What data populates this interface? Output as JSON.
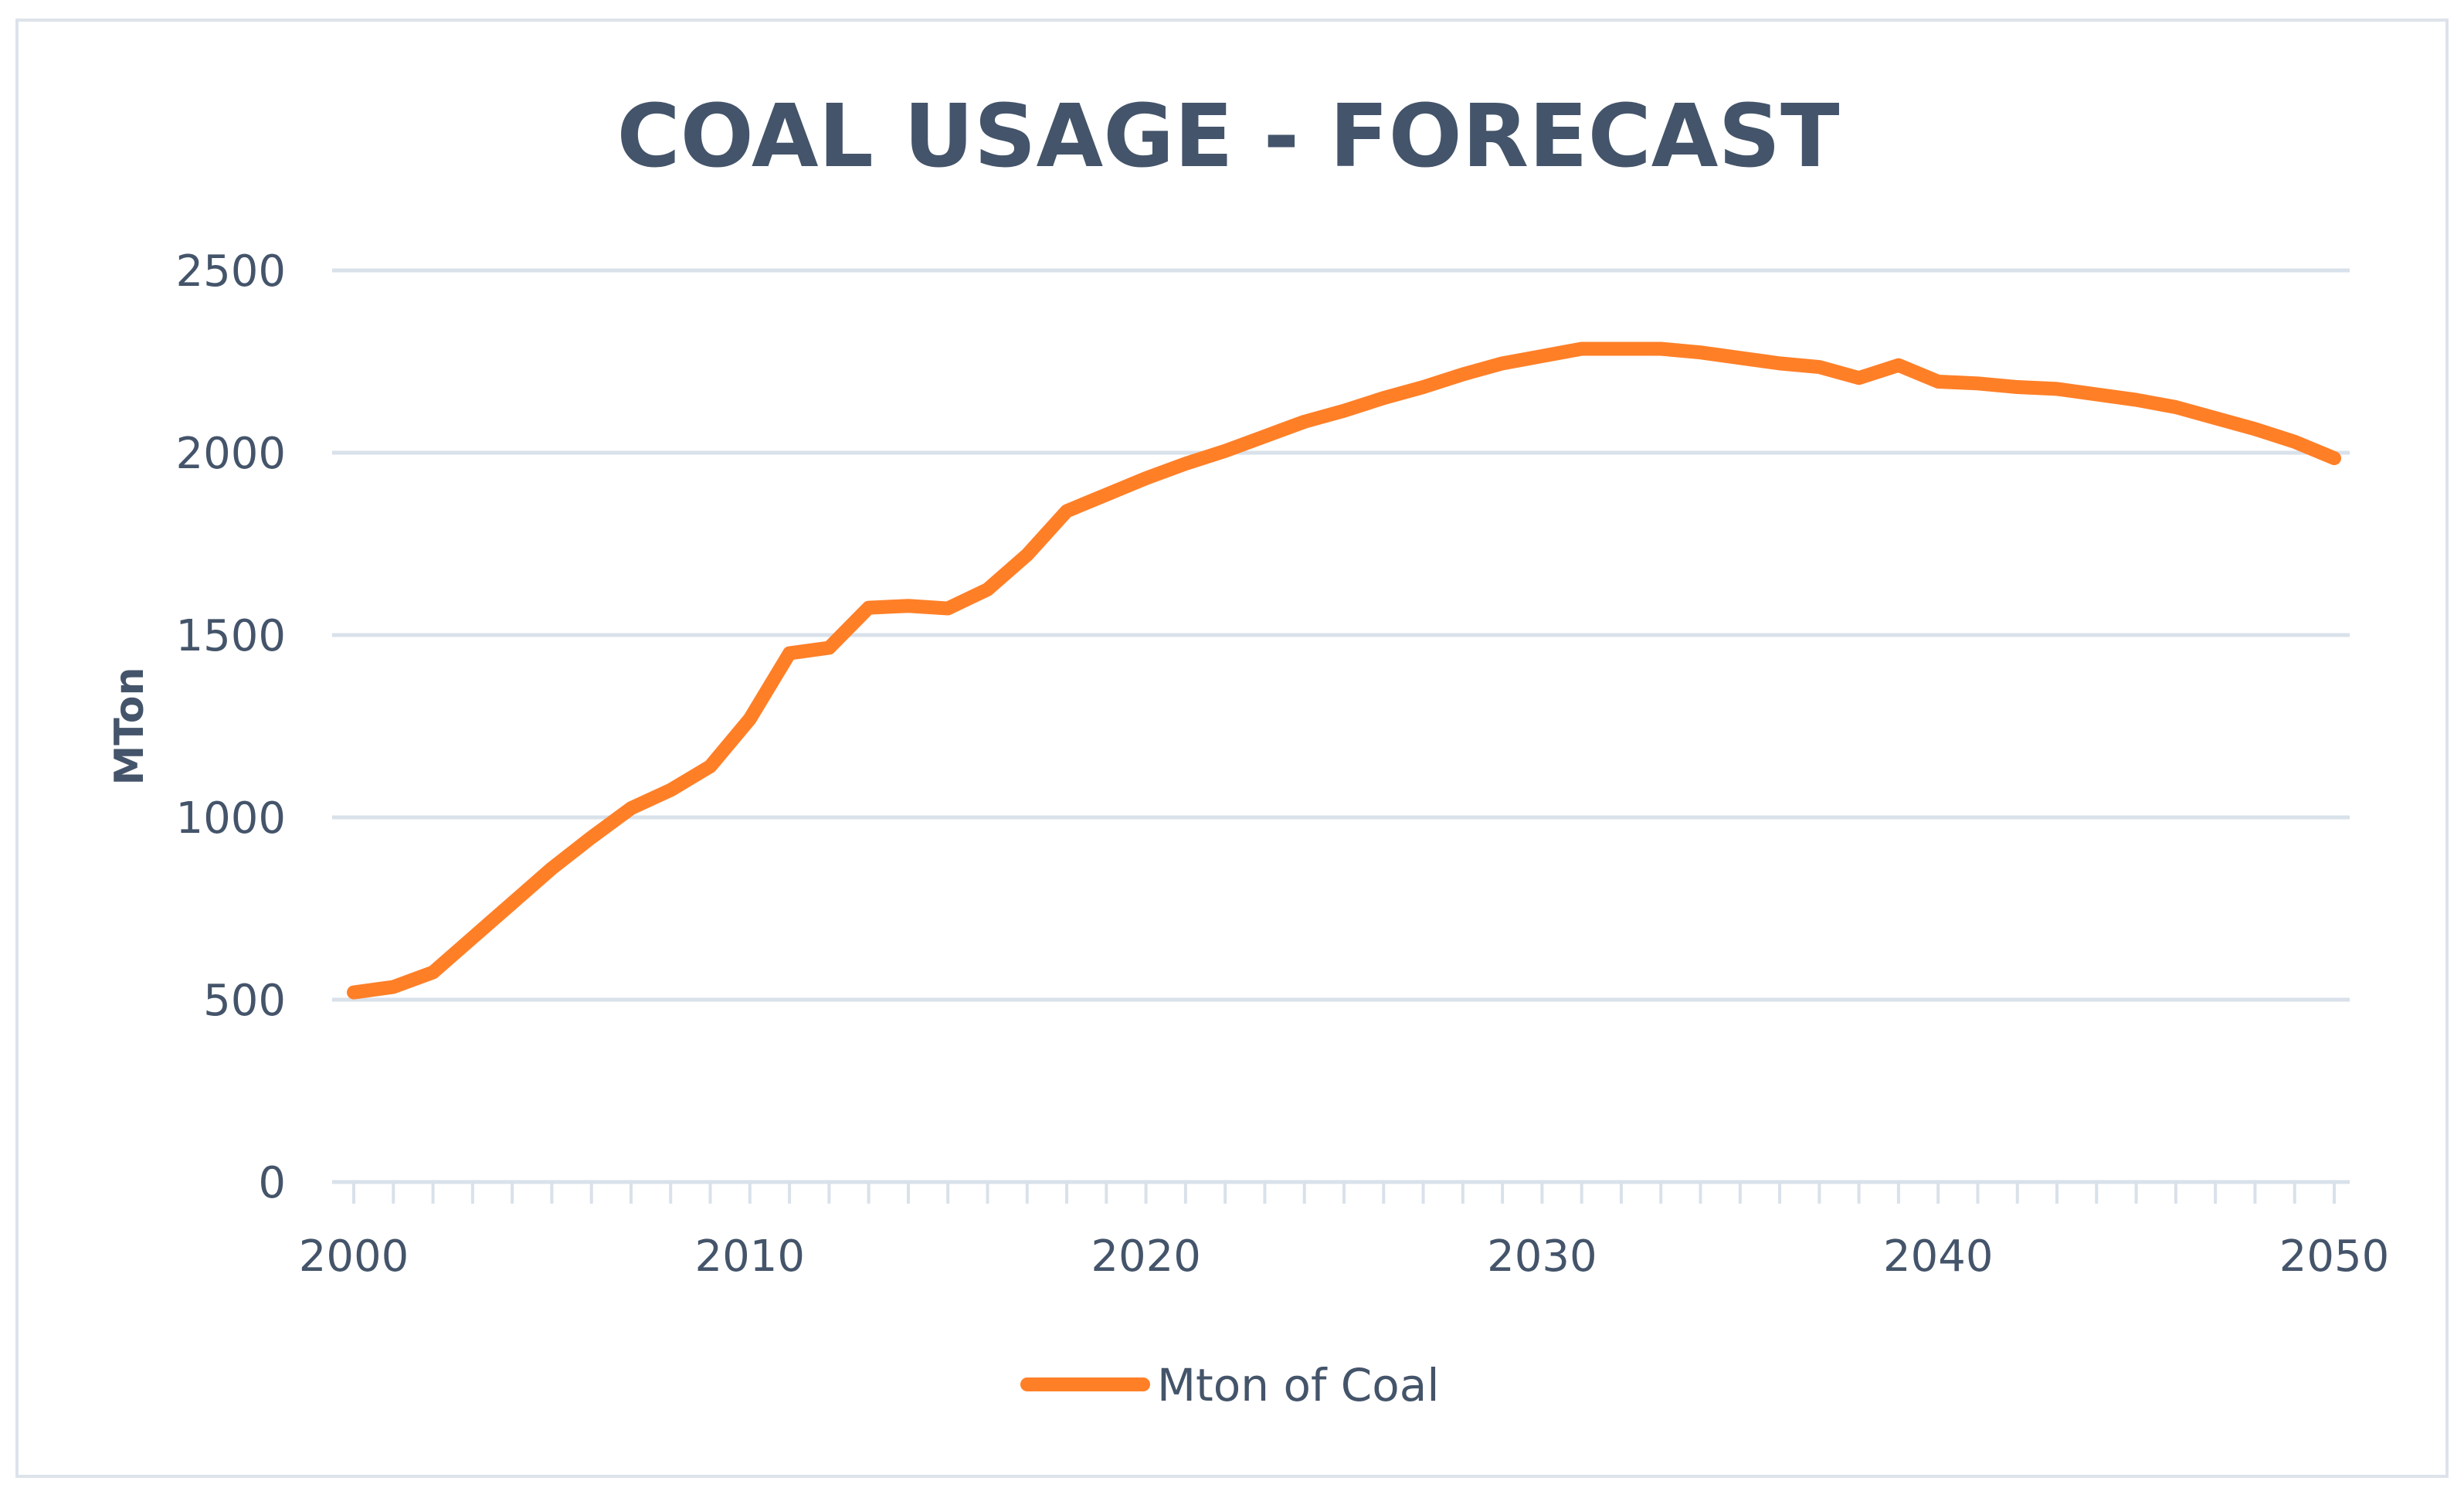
{
  "chart_data": {
    "type": "line",
    "title": "COAL USAGE - FORECAST",
    "xlabel": "",
    "ylabel": "MTon",
    "xlim": [
      2000,
      2050
    ],
    "ylim": [
      0,
      2500
    ],
    "x_ticks": [
      "2000",
      "2010",
      "2020",
      "2030",
      "2040",
      "2050"
    ],
    "y_ticks": [
      "0",
      "500",
      "1000",
      "1500",
      "2000",
      "2500"
    ],
    "grid": true,
    "legend": "bottom",
    "colors": {
      "series": "#ff7f27",
      "text": "#44546a",
      "grid": "#d9e1ea"
    },
    "x": [
      2000,
      2001,
      2002,
      2003,
      2004,
      2005,
      2006,
      2007,
      2008,
      2009,
      2010,
      2011,
      2012,
      2013,
      2014,
      2015,
      2016,
      2017,
      2018,
      2019,
      2020,
      2021,
      2022,
      2023,
      2024,
      2025,
      2026,
      2027,
      2028,
      2029,
      2030,
      2031,
      2032,
      2033,
      2034,
      2035,
      2036,
      2037,
      2038,
      2039,
      2040,
      2041,
      2042,
      2043,
      2044,
      2045,
      2046,
      2047,
      2048,
      2049,
      2050
    ],
    "series": [
      {
        "name": "Mton of Coal",
        "values": [
          520,
          535,
          575,
          670,
          765,
          860,
          945,
          1025,
          1075,
          1140,
          1270,
          1450,
          1465,
          1575,
          1580,
          1573,
          1625,
          1720,
          1840,
          1885,
          1930,
          1970,
          2005,
          2045,
          2085,
          2115,
          2150,
          2180,
          2215,
          2245,
          2265,
          2285,
          2285,
          2285,
          2275,
          2260,
          2245,
          2235,
          2205,
          2240,
          2195,
          2190,
          2180,
          2175,
          2160,
          2145,
          2125,
          2095,
          2065,
          2030,
          1985
        ]
      }
    ]
  }
}
